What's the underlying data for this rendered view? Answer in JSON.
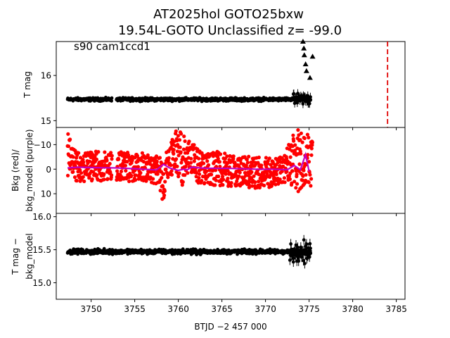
{
  "title": {
    "line1": "AT2025hol  GOTO25bxw",
    "line2": "19.54L-GOTO Unclassified z= -99.0"
  },
  "annotation": "s90 cam1ccd1",
  "colors": {
    "data": "#000000",
    "bkg": "#ff0000",
    "bkg_model": "#c000c0",
    "marker_line": "#e00000",
    "frame": "#000000"
  },
  "chart_data": [
    {
      "type": "scatter",
      "panel": "top",
      "ylabel": "T mag",
      "xlim": [
        3746.0,
        3786.0
      ],
      "ylim": [
        16.75,
        14.85
      ],
      "yinvert": true,
      "yticks": [
        15,
        16
      ],
      "yticklabels": [
        "15",
        "16"
      ],
      "xticklabels_visible": false,
      "series": [
        {
          "name": "T mag",
          "style": "dots",
          "x_range": [
            3747.3,
            3761.2
          ],
          "y_center": 15.47,
          "y_spread": 0.05,
          "gaps": [
            [
              3752.4,
              3752.9
            ]
          ]
        },
        {
          "name": "T mag",
          "style": "dots",
          "x_range": [
            3761.4,
            3775.2
          ],
          "y_center": 15.47,
          "y_spread": 0.05
        },
        {
          "name": "T mag upper limits",
          "style": "triangles",
          "x": [
            3774.3,
            3774.4,
            3774.45,
            3774.6,
            3774.7,
            3775.1,
            3775.4
          ],
          "y": [
            16.75,
            16.6,
            16.45,
            16.25,
            16.1,
            15.95,
            16.42
          ]
        }
      ],
      "vline": {
        "x": 3784.0,
        "style": "dashed",
        "color": "red"
      }
    },
    {
      "type": "scatter",
      "panel": "middle",
      "ylabel": "Bkg (red)/\nbkg_model (purple)",
      "xlim": [
        3746.0,
        3786.0
      ],
      "ylim": [
        -17,
        18
      ],
      "yticks": [
        10,
        0,
        -10
      ],
      "yticklabels": [
        "10",
        "0",
        "−10"
      ],
      "xticklabels_visible": false,
      "series": [
        {
          "name": "Bkg",
          "color": "red",
          "x_range": [
            3747.3,
            3775.4
          ],
          "envelope": [
            [
              3747.3,
              -15,
              4
            ],
            [
              3748.0,
              -8,
              5
            ],
            [
              3752.0,
              -7,
              5
            ],
            [
              3756.0,
              -7,
              5
            ],
            [
              3757.8,
              -5,
              7
            ],
            [
              3758.3,
              -6,
              15
            ],
            [
              3758.8,
              -8,
              4
            ],
            [
              3759.6,
              -16,
              1
            ],
            [
              3760.4,
              -16,
              7
            ],
            [
              3761.0,
              -10,
              3
            ],
            [
              3761.4,
              -14,
              1
            ],
            [
              3762.0,
              -9,
              6
            ],
            [
              3766.0,
              -6,
              7
            ],
            [
              3770.0,
              -5,
              8
            ],
            [
              3772.0,
              -5,
              6
            ],
            [
              3772.7,
              -11,
              5
            ],
            [
              3773.3,
              -16,
              9
            ],
            [
              3774.3,
              -16,
              12
            ],
            [
              3775.0,
              -14,
              8
            ]
          ]
        },
        {
          "name": "bkg_model",
          "color": "purple",
          "x": [
            3747.3,
            3748.5,
            3751.0,
            3753.0,
            3755.0,
            3757.5,
            3758.3,
            3759.0,
            3760.0,
            3760.6,
            3761.0,
            3761.5,
            3763.0,
            3766.0,
            3769.0,
            3771.0,
            3772.5,
            3773.3,
            3774.0,
            3774.6,
            3775.0
          ],
          "y": [
            -0.5,
            -0.8,
            -0.6,
            -0.5,
            -0.2,
            0.3,
            -2.0,
            -0.5,
            0.5,
            0.0,
            0.3,
            -0.8,
            -0.4,
            -0.3,
            0.0,
            0.0,
            0.2,
            -1.5,
            0.2,
            -6.0,
            1.0
          ]
        }
      ]
    },
    {
      "type": "scatter",
      "panel": "bottom",
      "ylabel": "T mag −\nbkg_model",
      "xlabel": "BTJD −2 457 000",
      "xlim": [
        3746.0,
        3786.0
      ],
      "ylim": [
        16.05,
        14.75
      ],
      "yinvert": true,
      "yticks": [
        15.0,
        15.5,
        16.0
      ],
      "yticklabels": [
        "15.0",
        "15.5",
        "16.0"
      ],
      "xticks": [
        3750,
        3755,
        3760,
        3765,
        3770,
        3775,
        3780,
        3785
      ],
      "xticklabels": [
        "3750",
        "3755",
        "3760",
        "3765",
        "3770",
        "3775",
        "3780",
        "3785"
      ],
      "series": [
        {
          "name": "T mag − bkg_model",
          "style": "dots",
          "x_range": [
            3747.3,
            3761.2
          ],
          "y_center": 15.47,
          "y_spread": 0.05
        },
        {
          "name": "T mag − bkg_model",
          "style": "dots",
          "x_range": [
            3761.4,
            3775.2
          ],
          "y_center": 15.47,
          "y_spread": 0.05
        }
      ]
    }
  ]
}
